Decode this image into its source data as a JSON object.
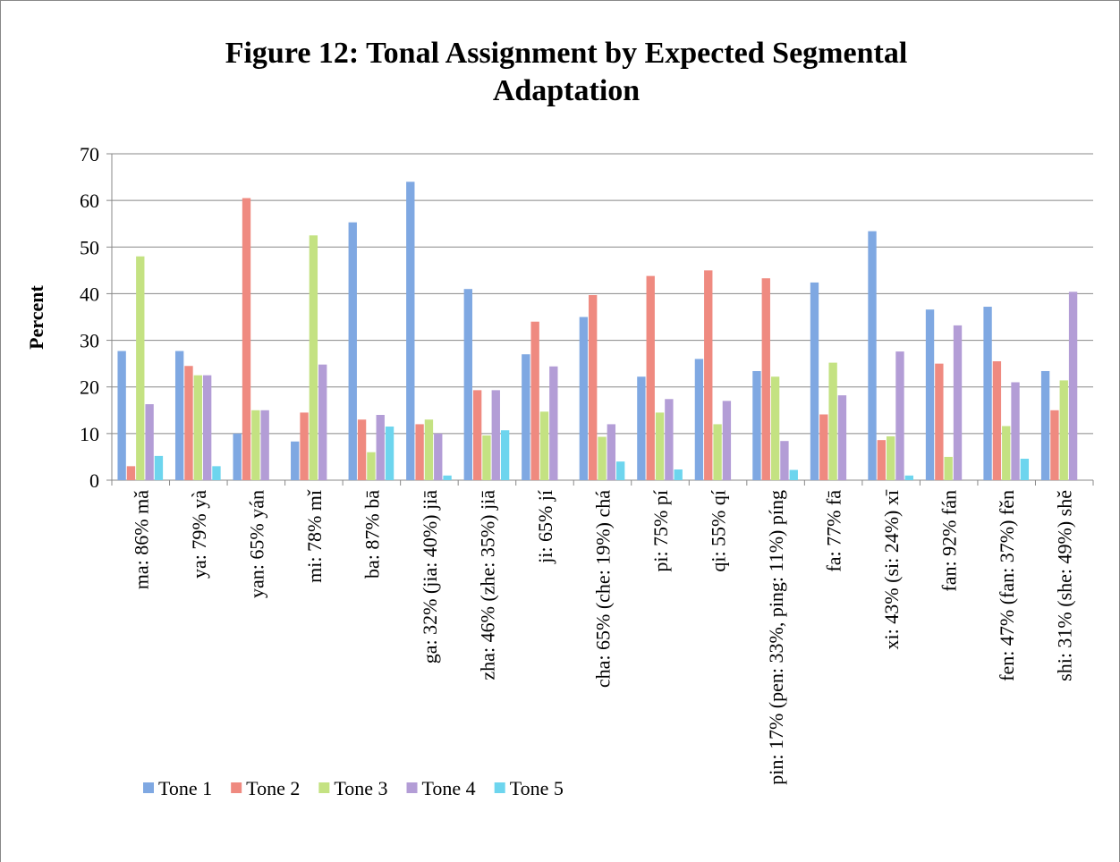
{
  "chart_data": {
    "type": "bar",
    "title": "Figure 12: Tonal Assignment by Expected Segmental",
    "subtitle": "Adaptation",
    "y_label": "Percent",
    "categories": [
      "ma: 86% mǎ",
      "ya: 79% yà",
      "yan: 65% yán",
      "mi: 78% mǐ",
      "ba: 87% bā",
      "ga: 32% (jia: 40%) jiā",
      "zha: 46% (zhe: 35%) jiā",
      "ji: 65% jí",
      "cha: 65% (che: 19%) chá",
      "pi: 75% pí",
      "qi: 55% qí",
      "pin: 17% (pen: 33%, ping: 11%) píng",
      "fa: 77% fā",
      "xi: 43% (si: 24%) xī",
      "fan: 92% fán",
      "fen: 47% (fan: 37%) fěn",
      "shi: 31% (she: 49%) shě"
    ],
    "series": [
      {
        "name": "Tone 1",
        "color": "#7fa8e2",
        "values": [
          27.7,
          27.7,
          10,
          8.3,
          55.3,
          64,
          41,
          27,
          35,
          22.2,
          26,
          23.4,
          42.4,
          53.4,
          36.6,
          37.2,
          23.4
        ]
      },
      {
        "name": "Tone 2",
        "color": "#ef8a80",
        "values": [
          3,
          24.5,
          60.5,
          14.5,
          13,
          12,
          19.3,
          34,
          39.7,
          43.8,
          45,
          43.3,
          14.1,
          8.6,
          25,
          25.5,
          15
        ]
      },
      {
        "name": "Tone 3",
        "color": "#c4e282",
        "values": [
          48,
          22.5,
          15,
          52.5,
          6,
          13,
          9.6,
          14.7,
          9.3,
          14.5,
          12,
          22.2,
          25.2,
          9.4,
          5,
          11.6,
          21.4
        ]
      },
      {
        "name": "Tone 4",
        "color": "#b39dd6",
        "values": [
          16.3,
          22.5,
          15,
          24.8,
          14,
          10,
          19.3,
          24.4,
          12,
          17.4,
          17,
          8.4,
          18.2,
          27.6,
          33.2,
          21,
          40.4
        ]
      },
      {
        "name": "Tone 5",
        "color": "#6dd5ee",
        "values": [
          5.2,
          3,
          0,
          0,
          11.5,
          1,
          10.7,
          0,
          4,
          2.3,
          0,
          2.2,
          0,
          1,
          0,
          4.6,
          0
        ]
      }
    ],
    "ylim": [
      0,
      70
    ],
    "yticks": [
      0,
      10,
      20,
      30,
      40,
      50,
      60,
      70
    ],
    "grid": true,
    "legend": "bottom-left"
  }
}
